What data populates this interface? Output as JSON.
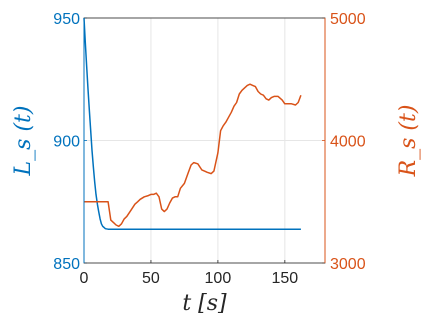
{
  "chart_data": {
    "type": "line",
    "xlabel": "t [s]",
    "ylabel_left": "L_s (t)",
    "ylabel_right": "R_s (t)",
    "xlim": [
      0,
      180
    ],
    "ylim_left": [
      850,
      950
    ],
    "ylim_right": [
      3000,
      5000
    ],
    "x_ticks": [
      "0",
      "50",
      "100",
      "150"
    ],
    "y_ticks_left": [
      "850",
      "900",
      "950"
    ],
    "y_ticks_right": [
      "3000",
      "4000",
      "5000"
    ],
    "grid": true,
    "colors": {
      "left": "#0072BD",
      "right": "#D95319",
      "grid": "#e6e6e6",
      "box": "#262626"
    },
    "series": [
      {
        "axis": "left",
        "x": [
          0,
          1,
          2,
          3,
          4,
          5,
          6,
          7,
          8,
          9,
          10,
          11,
          12,
          13,
          14,
          15,
          16,
          18,
          20,
          25,
          30,
          40,
          60,
          80,
          100,
          120,
          140,
          160,
          162
        ],
        "y": [
          950,
          940,
          930,
          921,
          912,
          904,
          896,
          889,
          883,
          878,
          874,
          871,
          868,
          866,
          865,
          864.5,
          864,
          863.8,
          863.8,
          863.8,
          863.8,
          863.8,
          863.8,
          863.8,
          863.8,
          863.8,
          863.8,
          863.8,
          863.8
        ]
      },
      {
        "axis": "right",
        "x": [
          0,
          10,
          18,
          20,
          22,
          24,
          26,
          28,
          30,
          32,
          35,
          38,
          40,
          42,
          45,
          48,
          50,
          52,
          54,
          56,
          58,
          60,
          62,
          64,
          66,
          68,
          70,
          72,
          75,
          78,
          80,
          82,
          85,
          88,
          90,
          92,
          95,
          97,
          100,
          102,
          104,
          106,
          108,
          110,
          112,
          114,
          116,
          118,
          120,
          122,
          124,
          126,
          128,
          130,
          132,
          134,
          136,
          138,
          140,
          142,
          145,
          148,
          150,
          152,
          155,
          158,
          160,
          162
        ],
        "y": [
          3500,
          3500,
          3500,
          3350,
          3330,
          3310,
          3300,
          3320,
          3360,
          3380,
          3430,
          3480,
          3500,
          3520,
          3540,
          3550,
          3560,
          3560,
          3570,
          3540,
          3440,
          3420,
          3440,
          3490,
          3530,
          3540,
          3540,
          3610,
          3650,
          3740,
          3800,
          3820,
          3810,
          3760,
          3750,
          3740,
          3730,
          3750,
          3900,
          4080,
          4120,
          4150,
          4190,
          4230,
          4280,
          4310,
          4380,
          4410,
          4430,
          4450,
          4460,
          4450,
          4440,
          4400,
          4380,
          4370,
          4340,
          4330,
          4350,
          4360,
          4360,
          4330,
          4300,
          4300,
          4300,
          4290,
          4310,
          4370
        ]
      }
    ]
  }
}
